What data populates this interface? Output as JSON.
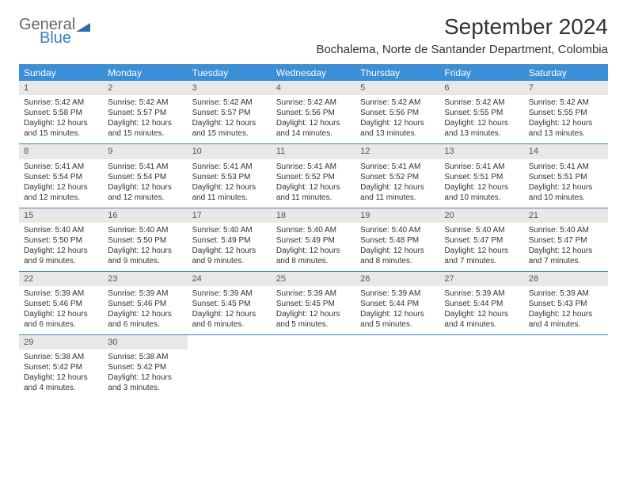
{
  "brand": {
    "text1": "General",
    "text2": "Blue"
  },
  "title": "September 2024",
  "location": "Bochalema, Norte de Santander Department, Colombia",
  "colors": {
    "header_bg": "#3b8fd6",
    "rule": "#3b7fc4",
    "daynum_bg": "#e8e8e8",
    "text": "#333333"
  },
  "weekdays": [
    "Sunday",
    "Monday",
    "Tuesday",
    "Wednesday",
    "Thursday",
    "Friday",
    "Saturday"
  ],
  "days": [
    {
      "n": 1,
      "sr": "5:42 AM",
      "ss": "5:58 PM",
      "dl": "12 hours and 15 minutes."
    },
    {
      "n": 2,
      "sr": "5:42 AM",
      "ss": "5:57 PM",
      "dl": "12 hours and 15 minutes."
    },
    {
      "n": 3,
      "sr": "5:42 AM",
      "ss": "5:57 PM",
      "dl": "12 hours and 15 minutes."
    },
    {
      "n": 4,
      "sr": "5:42 AM",
      "ss": "5:56 PM",
      "dl": "12 hours and 14 minutes."
    },
    {
      "n": 5,
      "sr": "5:42 AM",
      "ss": "5:56 PM",
      "dl": "12 hours and 13 minutes."
    },
    {
      "n": 6,
      "sr": "5:42 AM",
      "ss": "5:55 PM",
      "dl": "12 hours and 13 minutes."
    },
    {
      "n": 7,
      "sr": "5:42 AM",
      "ss": "5:55 PM",
      "dl": "12 hours and 13 minutes."
    },
    {
      "n": 8,
      "sr": "5:41 AM",
      "ss": "5:54 PM",
      "dl": "12 hours and 12 minutes."
    },
    {
      "n": 9,
      "sr": "5:41 AM",
      "ss": "5:54 PM",
      "dl": "12 hours and 12 minutes."
    },
    {
      "n": 10,
      "sr": "5:41 AM",
      "ss": "5:53 PM",
      "dl": "12 hours and 11 minutes."
    },
    {
      "n": 11,
      "sr": "5:41 AM",
      "ss": "5:52 PM",
      "dl": "12 hours and 11 minutes."
    },
    {
      "n": 12,
      "sr": "5:41 AM",
      "ss": "5:52 PM",
      "dl": "12 hours and 11 minutes."
    },
    {
      "n": 13,
      "sr": "5:41 AM",
      "ss": "5:51 PM",
      "dl": "12 hours and 10 minutes."
    },
    {
      "n": 14,
      "sr": "5:41 AM",
      "ss": "5:51 PM",
      "dl": "12 hours and 10 minutes."
    },
    {
      "n": 15,
      "sr": "5:40 AM",
      "ss": "5:50 PM",
      "dl": "12 hours and 9 minutes."
    },
    {
      "n": 16,
      "sr": "5:40 AM",
      "ss": "5:50 PM",
      "dl": "12 hours and 9 minutes."
    },
    {
      "n": 17,
      "sr": "5:40 AM",
      "ss": "5:49 PM",
      "dl": "12 hours and 9 minutes."
    },
    {
      "n": 18,
      "sr": "5:40 AM",
      "ss": "5:49 PM",
      "dl": "12 hours and 8 minutes."
    },
    {
      "n": 19,
      "sr": "5:40 AM",
      "ss": "5:48 PM",
      "dl": "12 hours and 8 minutes."
    },
    {
      "n": 20,
      "sr": "5:40 AM",
      "ss": "5:47 PM",
      "dl": "12 hours and 7 minutes."
    },
    {
      "n": 21,
      "sr": "5:40 AM",
      "ss": "5:47 PM",
      "dl": "12 hours and 7 minutes."
    },
    {
      "n": 22,
      "sr": "5:39 AM",
      "ss": "5:46 PM",
      "dl": "12 hours and 6 minutes."
    },
    {
      "n": 23,
      "sr": "5:39 AM",
      "ss": "5:46 PM",
      "dl": "12 hours and 6 minutes."
    },
    {
      "n": 24,
      "sr": "5:39 AM",
      "ss": "5:45 PM",
      "dl": "12 hours and 6 minutes."
    },
    {
      "n": 25,
      "sr": "5:39 AM",
      "ss": "5:45 PM",
      "dl": "12 hours and 5 minutes."
    },
    {
      "n": 26,
      "sr": "5:39 AM",
      "ss": "5:44 PM",
      "dl": "12 hours and 5 minutes."
    },
    {
      "n": 27,
      "sr": "5:39 AM",
      "ss": "5:44 PM",
      "dl": "12 hours and 4 minutes."
    },
    {
      "n": 28,
      "sr": "5:39 AM",
      "ss": "5:43 PM",
      "dl": "12 hours and 4 minutes."
    },
    {
      "n": 29,
      "sr": "5:38 AM",
      "ss": "5:42 PM",
      "dl": "12 hours and 4 minutes."
    },
    {
      "n": 30,
      "sr": "5:38 AM",
      "ss": "5:42 PM",
      "dl": "12 hours and 3 minutes."
    }
  ],
  "labels": {
    "sunrise": "Sunrise:",
    "sunset": "Sunset:",
    "daylight": "Daylight:"
  },
  "start_weekday": 0,
  "trailing_empty": 5
}
